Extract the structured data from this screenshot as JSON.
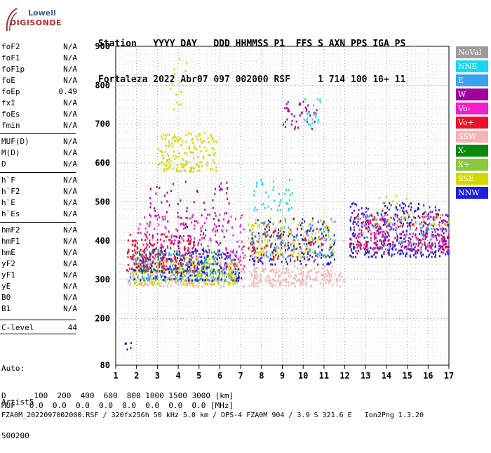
{
  "logo": {
    "line1": "Lowell",
    "line2": "DIGISONDE"
  },
  "header": {
    "row1": "Station   YYYY DAY   DDD HHMMSS P1  FFS S AXN PPS IGA PS",
    "row2": "Fortaleza 2022 Abr07 097 002000 RSF     1 714 100 10+ 11"
  },
  "params": [
    {
      "name": "foF2",
      "value": "N/A"
    },
    {
      "name": "foF1",
      "value": "N/A"
    },
    {
      "name": "foF1p",
      "value": "N/A"
    },
    {
      "name": "foE",
      "value": "N/A"
    },
    {
      "name": "foEp",
      "value": "0.49"
    },
    {
      "name": "fxI",
      "value": "N/A"
    },
    {
      "name": "foEs",
      "value": "N/A"
    },
    {
      "name": "fmin",
      "value": "N/A"
    },
    {
      "name": "MUF(D)",
      "value": "N/A"
    },
    {
      "name": "M(D)",
      "value": "N/A"
    },
    {
      "name": "D",
      "value": "N/A"
    },
    {
      "name": "h`F",
      "value": "N/A"
    },
    {
      "name": "h`F2",
      "value": "N/A"
    },
    {
      "name": "h`E",
      "value": "N/A"
    },
    {
      "name": "h`Es",
      "value": "N/A"
    },
    {
      "name": "hmF2",
      "value": "N/A"
    },
    {
      "name": "hmF1",
      "value": "N/A"
    },
    {
      "name": "hmE",
      "value": "N/A"
    },
    {
      "name": "yF2",
      "value": "N/A"
    },
    {
      "name": "yF1",
      "value": "N/A"
    },
    {
      "name": "yE",
      "value": "N/A"
    },
    {
      "name": "B0",
      "value": "N/A"
    },
    {
      "name": "B1",
      "value": "N/A"
    },
    {
      "name": "C-level",
      "value": "44"
    }
  ],
  "auto_note": {
    "line1": "Auto:",
    "line2": "Artist5",
    "line3": "500200"
  },
  "footer": {
    "d_row": "D      100  200  400  600  800 1000 1500 3000 [km]",
    "muf_row": "MUF   0.0  0.0  0.0  0.0  0.0  0.0  0.0  0.0 [MHz]",
    "file_row": "FZA0M_2022097002000.RSF / 320fx256h 50 kHz 5.0 km / DPS-4 FZA0M 904 / 3.9 S 321.6 E   Ion2Png 1.3.20"
  },
  "legend": [
    {
      "label": "NoVal",
      "color": "#9b9b9b"
    },
    {
      "label": "NNE",
      "color": "#1ad7f0"
    },
    {
      "label": "E",
      "color": "#3aa0f0"
    },
    {
      "label": "W",
      "color": "#a0009b"
    },
    {
      "label": "Vo-",
      "color": "#f01fc8"
    },
    {
      "label": "Vo+",
      "color": "#f00f2a"
    },
    {
      "label": "SSW",
      "color": "#f5b4b4"
    },
    {
      "label": "X-",
      "color": "#0a8a0a"
    },
    {
      "label": "X+",
      "color": "#8cc83c"
    },
    {
      "label": "SSE",
      "color": "#d7d700"
    },
    {
      "label": "NNW",
      "color": "#1e1ee0"
    }
  ],
  "chart_data": {
    "type": "scatter",
    "xlabel": "",
    "ylabel": "",
    "xlim": [
      1,
      17
    ],
    "ylim": [
      80,
      900
    ],
    "xticks": [
      "1",
      "2",
      "3",
      "4",
      "5",
      "6",
      "7",
      "8",
      "9",
      "10",
      "11",
      "12",
      "13",
      "14",
      "15",
      "16",
      "17"
    ],
    "yticks": [
      "80",
      "200",
      "300",
      "400",
      "500",
      "600",
      "700",
      "800",
      "900"
    ],
    "grid": true,
    "clusters": [
      {
        "series": "SSW",
        "x": [
          1.5,
          12.0
        ],
        "y": [
          285,
          330
        ],
        "n": 260
      },
      {
        "series": "SSE",
        "x": [
          1.8,
          7.0
        ],
        "y": [
          290,
          360
        ],
        "n": 320
      },
      {
        "series": "E",
        "x": [
          1.6,
          6.8
        ],
        "y": [
          300,
          380
        ],
        "n": 260
      },
      {
        "series": "Vo+",
        "x": [
          1.5,
          4.8
        ],
        "y": [
          320,
          420
        ],
        "n": 200
      },
      {
        "series": "Vo-",
        "x": [
          2.0,
          7.2
        ],
        "y": [
          330,
          470
        ],
        "n": 200
      },
      {
        "series": "W",
        "x": [
          2.5,
          6.5
        ],
        "y": [
          360,
          560
        ],
        "n": 120
      },
      {
        "series": "NNW",
        "x": [
          1.8,
          7.0
        ],
        "y": [
          300,
          380
        ],
        "n": 140
      },
      {
        "series": "X-",
        "x": [
          2.0,
          6.0
        ],
        "y": [
          320,
          380
        ],
        "n": 60
      },
      {
        "series": "SSE",
        "x": [
          3.0,
          5.8
        ],
        "y": [
          580,
          680
        ],
        "n": 170
      },
      {
        "series": "SSE",
        "x": [
          3.5,
          4.5
        ],
        "y": [
          740,
          870
        ],
        "n": 14
      },
      {
        "series": "NNE",
        "x": [
          7.5,
          9.5
        ],
        "y": [
          480,
          560
        ],
        "n": 40
      },
      {
        "series": "SSE",
        "x": [
          7.3,
          11.5
        ],
        "y": [
          360,
          460
        ],
        "n": 160
      },
      {
        "series": "NNW",
        "x": [
          7.5,
          11.5
        ],
        "y": [
          340,
          460
        ],
        "n": 140
      },
      {
        "series": "E",
        "x": [
          7.5,
          11.5
        ],
        "y": [
          360,
          460
        ],
        "n": 100
      },
      {
        "series": "Vo+",
        "x": [
          7.3,
          11.0
        ],
        "y": [
          350,
          440
        ],
        "n": 80
      },
      {
        "series": "SSW",
        "x": [
          7.5,
          11.5
        ],
        "y": [
          300,
          340
        ],
        "n": 80
      },
      {
        "series": "W",
        "x": [
          9.0,
          10.8
        ],
        "y": [
          690,
          760
        ],
        "n": 40
      },
      {
        "series": "NNE",
        "x": [
          10.0,
          10.8
        ],
        "y": [
          700,
          770
        ],
        "n": 20
      },
      {
        "series": "NNW",
        "x": [
          12.2,
          17.0
        ],
        "y": [
          360,
          500
        ],
        "n": 280
      },
      {
        "series": "W",
        "x": [
          12.2,
          17.0
        ],
        "y": [
          370,
          480
        ],
        "n": 180
      },
      {
        "series": "Vo-",
        "x": [
          12.5,
          17.0
        ],
        "y": [
          380,
          470
        ],
        "n": 120
      },
      {
        "series": "Vo+",
        "x": [
          12.5,
          17.0
        ],
        "y": [
          380,
          470
        ],
        "n": 80
      },
      {
        "series": "E",
        "x": [
          12.5,
          16.5
        ],
        "y": [
          380,
          470
        ],
        "n": 60
      },
      {
        "series": "SSE",
        "x": [
          13.0,
          17.0
        ],
        "y": [
          440,
          520
        ],
        "n": 40
      },
      {
        "series": "NNW",
        "x": [
          1.3,
          1.8
        ],
        "y": [
          120,
          140
        ],
        "n": 5
      }
    ]
  }
}
